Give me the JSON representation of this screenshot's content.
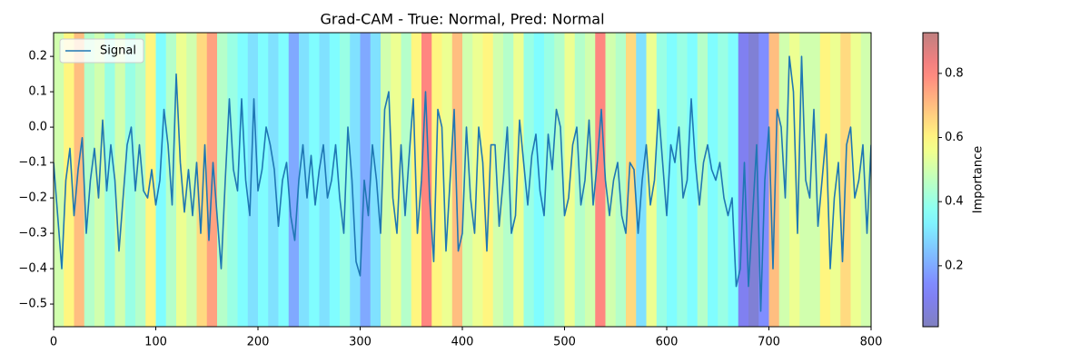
{
  "chart_data": {
    "type": "line",
    "title": "Grad-CAM - True: Normal, Pred: Normal",
    "x": [
      0,
      4,
      8,
      12,
      16,
      20,
      24,
      28,
      32,
      36,
      40,
      44,
      48,
      52,
      56,
      60,
      64,
      68,
      72,
      76,
      80,
      84,
      88,
      92,
      96,
      100,
      104,
      108,
      112,
      116,
      120,
      124,
      128,
      132,
      136,
      140,
      144,
      148,
      152,
      156,
      160,
      164,
      168,
      172,
      176,
      180,
      184,
      188,
      192,
      196,
      200,
      204,
      208,
      212,
      216,
      220,
      224,
      228,
      232,
      236,
      240,
      244,
      248,
      252,
      256,
      260,
      264,
      268,
      272,
      276,
      280,
      284,
      288,
      292,
      296,
      300,
      304,
      308,
      312,
      316,
      320,
      324,
      328,
      332,
      336,
      340,
      344,
      348,
      352,
      356,
      360,
      364,
      368,
      372,
      376,
      380,
      384,
      388,
      392,
      396,
      400,
      404,
      408,
      412,
      416,
      420,
      424,
      428,
      432,
      436,
      440,
      444,
      448,
      452,
      456,
      460,
      464,
      468,
      472,
      476,
      480,
      484,
      488,
      492,
      496,
      500,
      504,
      508,
      512,
      516,
      520,
      524,
      528,
      532,
      536,
      540,
      544,
      548,
      552,
      556,
      560,
      564,
      568,
      572,
      576,
      580,
      584,
      588,
      592,
      596,
      600,
      604,
      608,
      612,
      616,
      620,
      624,
      628,
      632,
      636,
      640,
      644,
      648,
      652,
      656,
      660,
      664,
      668,
      672,
      676,
      680,
      684,
      688,
      692,
      696,
      700,
      704,
      708,
      712,
      716,
      720,
      724,
      728,
      732,
      736,
      740,
      744,
      748,
      752,
      756,
      760,
      764,
      768,
      772,
      776,
      780,
      784,
      788,
      792,
      796,
      800
    ],
    "series": [
      {
        "name": "Signal",
        "color": "#1f77b4",
        "values": [
          -0.1,
          -0.25,
          -0.4,
          -0.15,
          -0.06,
          -0.25,
          -0.12,
          -0.03,
          -0.3,
          -0.15,
          -0.06,
          -0.2,
          0.02,
          -0.18,
          -0.05,
          -0.15,
          -0.35,
          -0.2,
          -0.05,
          0.0,
          -0.18,
          -0.05,
          -0.18,
          -0.2,
          -0.12,
          -0.22,
          -0.15,
          0.05,
          -0.05,
          -0.22,
          0.15,
          -0.1,
          -0.24,
          -0.12,
          -0.25,
          -0.1,
          -0.3,
          -0.05,
          -0.32,
          -0.1,
          -0.25,
          -0.4,
          -0.15,
          0.08,
          -0.12,
          -0.18,
          0.08,
          -0.15,
          -0.25,
          0.08,
          -0.18,
          -0.12,
          0.0,
          -0.05,
          -0.12,
          -0.28,
          -0.15,
          -0.1,
          -0.25,
          -0.32,
          -0.15,
          -0.05,
          -0.2,
          -0.08,
          -0.22,
          -0.12,
          -0.05,
          -0.2,
          -0.15,
          -0.05,
          -0.2,
          -0.3,
          0.0,
          -0.15,
          -0.38,
          -0.42,
          -0.15,
          -0.25,
          -0.05,
          -0.15,
          -0.3,
          0.05,
          0.1,
          -0.2,
          -0.3,
          -0.05,
          -0.25,
          -0.08,
          0.08,
          -0.3,
          -0.15,
          0.1,
          -0.2,
          -0.38,
          0.05,
          0.0,
          -0.35,
          -0.15,
          0.05,
          -0.35,
          -0.3,
          0.0,
          -0.2,
          -0.3,
          0.0,
          -0.1,
          -0.35,
          -0.05,
          -0.05,
          -0.28,
          -0.15,
          0.0,
          -0.3,
          -0.25,
          0.02,
          -0.1,
          -0.22,
          -0.08,
          -0.02,
          -0.18,
          -0.25,
          -0.02,
          -0.12,
          0.05,
          0.0,
          -0.25,
          -0.2,
          -0.05,
          0.0,
          -0.22,
          -0.15,
          0.02,
          -0.22,
          -0.1,
          0.05,
          -0.15,
          -0.25,
          -0.15,
          -0.1,
          -0.25,
          -0.3,
          -0.1,
          -0.12,
          -0.3,
          -0.15,
          -0.05,
          -0.22,
          -0.15,
          0.05,
          -0.1,
          -0.25,
          -0.05,
          -0.1,
          0.0,
          -0.2,
          -0.15,
          0.08,
          -0.1,
          -0.22,
          -0.1,
          -0.05,
          -0.12,
          -0.15,
          -0.1,
          -0.2,
          -0.25,
          -0.2,
          -0.45,
          -0.4,
          -0.1,
          -0.45,
          -0.25,
          -0.05,
          -0.52,
          -0.15,
          0.0,
          -0.4,
          0.05,
          0.0,
          -0.2,
          0.2,
          0.1,
          -0.3,
          0.2,
          -0.15,
          -0.2,
          0.05,
          -0.28,
          -0.15,
          -0.02,
          -0.4,
          -0.2,
          -0.1,
          -0.38,
          -0.05,
          0.0,
          -0.2,
          -0.15,
          -0.05,
          -0.3,
          -0.05
        ]
      }
    ],
    "xlim": [
      0,
      800
    ],
    "xticks": [
      0,
      100,
      200,
      300,
      400,
      500,
      600,
      700,
      800
    ],
    "ylim": [
      -0.564,
      0.267
    ],
    "yticks": [
      {
        "value": -0.5,
        "label": "−0.5"
      },
      {
        "value": -0.4,
        "label": "−0.4"
      },
      {
        "value": -0.3,
        "label": "−0.3"
      },
      {
        "value": -0.2,
        "label": "−0.2"
      },
      {
        "value": -0.1,
        "label": "−0.1"
      },
      {
        "value": 0,
        "label": "0.0"
      },
      0.1,
      0.2
    ],
    "legend": "upper left",
    "heatmap": {
      "colormap": "jet",
      "alpha": 0.5,
      "bins": [
        0,
        10,
        20,
        30,
        40,
        50,
        60,
        70,
        80,
        90,
        100,
        110,
        120,
        130,
        140,
        150,
        160,
        170,
        180,
        190,
        200,
        210,
        220,
        230,
        240,
        250,
        260,
        270,
        280,
        290,
        300,
        310,
        320,
        330,
        340,
        350,
        360,
        370,
        380,
        390,
        400,
        410,
        420,
        430,
        440,
        450,
        460,
        470,
        480,
        490,
        500,
        510,
        520,
        530,
        540,
        550,
        560,
        570,
        580,
        590,
        600,
        610,
        620,
        630,
        640,
        650,
        660,
        670,
        680,
        690,
        700,
        710,
        720,
        730,
        740,
        750,
        760,
        770,
        780,
        790,
        800
      ],
      "values": [
        0.5,
        0.6,
        0.7,
        0.45,
        0.5,
        0.4,
        0.5,
        0.4,
        0.45,
        0.6,
        0.35,
        0.45,
        0.55,
        0.5,
        0.65,
        0.75,
        0.45,
        0.4,
        0.35,
        0.3,
        0.35,
        0.3,
        0.35,
        0.2,
        0.3,
        0.35,
        0.3,
        0.35,
        0.4,
        0.3,
        0.2,
        0.3,
        0.5,
        0.55,
        0.45,
        0.6,
        0.8,
        0.6,
        0.55,
        0.7,
        0.5,
        0.55,
        0.6,
        0.5,
        0.45,
        0.55,
        0.4,
        0.35,
        0.4,
        0.45,
        0.55,
        0.45,
        0.5,
        0.8,
        0.5,
        0.45,
        0.65,
        0.3,
        0.55,
        0.4,
        0.35,
        0.4,
        0.35,
        0.45,
        0.35,
        0.4,
        0.35,
        0.1,
        0.05,
        0.15,
        0.7,
        0.5,
        0.55,
        0.5,
        0.5,
        0.6,
        0.55,
        0.65,
        0.55,
        0.5
      ],
      "clim": [
        0.01,
        0.927
      ],
      "colorbar_ticks": [
        0.2,
        0.4,
        0.6,
        0.8
      ],
      "colorbar_label": "Importance"
    }
  }
}
